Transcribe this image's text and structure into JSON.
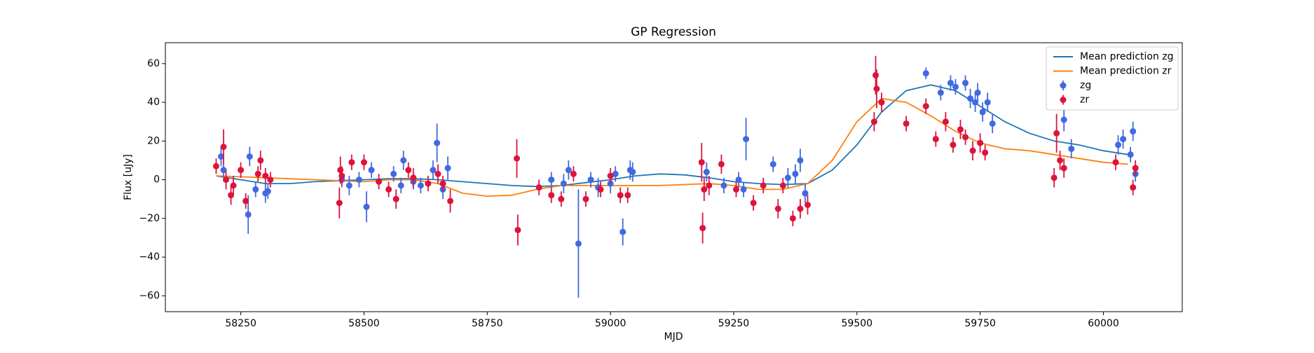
{
  "chart_data": {
    "type": "line",
    "title": "GP Regression",
    "x_label": "MJD",
    "y_label": "Flux [uJy]",
    "xlim": [
      58097,
      60160
    ],
    "ylim": [
      -68.2,
      70.8
    ],
    "xticks": [
      58250,
      58500,
      58750,
      59000,
      59250,
      59500,
      59750,
      60000
    ],
    "yticks": [
      {
        "value": -60,
        "label": "−60"
      },
      {
        "value": -40,
        "label": "−40"
      },
      {
        "value": -20,
        "label": "−20"
      },
      0,
      20,
      40,
      60
    ],
    "legend": "upper right",
    "series": [
      {
        "name": "Mean prediction zg",
        "kind": "line",
        "color": "#1f77b4",
        "x": [
          58200,
          58250,
          58300,
          58350,
          58400,
          58450,
          58500,
          58550,
          58600,
          58650,
          58700,
          58750,
          58800,
          58850,
          58900,
          58950,
          59000,
          59050,
          59100,
          59150,
          59200,
          59250,
          59300,
          59350,
          59400,
          59450,
          59500,
          59550,
          59600,
          59650,
          59700,
          59750,
          59800,
          59850,
          59900,
          59950,
          60000,
          60050
        ],
        "values": [
          2,
          0,
          -2,
          -2,
          -1,
          -0.5,
          0,
          0.5,
          0.5,
          0,
          -1,
          -2,
          -3,
          -3.5,
          -3,
          -1.5,
          0,
          2,
          3,
          2.5,
          1,
          -1,
          -2,
          -2.5,
          -2,
          5,
          18,
          35,
          46,
          49,
          46,
          38,
          30,
          24,
          20,
          18,
          15,
          13
        ]
      },
      {
        "name": "Mean prediction zr",
        "kind": "line",
        "color": "#ff7f0e",
        "x": [
          58200,
          58250,
          58300,
          58350,
          58400,
          58450,
          58500,
          58550,
          58600,
          58650,
          58700,
          58750,
          58800,
          58850,
          58900,
          58950,
          59000,
          59050,
          59100,
          59150,
          59200,
          59250,
          59300,
          59350,
          59400,
          59450,
          59500,
          59550,
          59600,
          59650,
          59700,
          59750,
          59800,
          59850,
          59900,
          59950,
          60000,
          60050
        ],
        "values": [
          2,
          1.5,
          1,
          0.5,
          0,
          -0.5,
          -1,
          0,
          0,
          -2,
          -7,
          -8.5,
          -8,
          -5,
          -3,
          -3,
          -3,
          -3,
          -3,
          -2.5,
          -2,
          -3,
          -5,
          -5,
          -2,
          10,
          30,
          42,
          40,
          33,
          25,
          19,
          16,
          15,
          13,
          11,
          9,
          8
        ]
      },
      {
        "name": "zg",
        "kind": "errorbar",
        "color": "#4169e1",
        "x": [
          58210,
          58215,
          58265,
          58268,
          58280,
          58300,
          58305,
          58455,
          58470,
          58490,
          58505,
          58515,
          58560,
          58575,
          58580,
          58600,
          58615,
          58640,
          58648,
          58660,
          58670,
          58880,
          58905,
          58915,
          58935,
          58960,
          58975,
          59000,
          59010,
          59025,
          59040,
          59045,
          59195,
          59230,
          59260,
          59270,
          59275,
          59330,
          59360,
          59375,
          59385,
          59395,
          59640,
          59670,
          59690,
          59700,
          59720,
          59730,
          59740,
          59745,
          59755,
          59765,
          59775,
          59920,
          59935,
          60030,
          60040,
          60055,
          60060,
          60065
        ],
        "values": [
          12,
          5,
          -18,
          12,
          -5,
          -7,
          -6,
          0,
          -3,
          0,
          -14,
          5,
          3,
          -3,
          10,
          -1,
          -3,
          5,
          19,
          -5,
          6,
          0,
          -2,
          5,
          -33,
          0,
          -4,
          -2,
          3,
          -27,
          5,
          4,
          4,
          -3,
          0,
          -5,
          21,
          8,
          1,
          3,
          10,
          -7,
          55,
          45,
          50,
          48,
          50,
          42,
          40,
          45,
          35,
          40,
          29,
          31,
          16,
          18,
          21,
          13,
          25,
          3
        ],
        "errors": [
          5,
          4,
          10,
          5,
          4,
          5,
          4,
          4,
          5,
          4,
          8,
          4,
          4,
          4,
          5,
          4,
          4,
          5,
          10,
          5,
          6,
          4,
          5,
          5,
          28,
          4,
          5,
          5,
          4,
          7,
          5,
          5,
          5,
          4,
          4,
          4,
          11,
          4,
          5,
          5,
          6,
          5,
          3,
          4,
          4,
          4,
          4,
          5,
          5,
          5,
          5,
          5,
          5,
          6,
          5,
          5,
          5,
          4,
          5,
          4
        ]
      },
      {
        "name": "zr",
        "kind": "errorbar",
        "color": "#dc143c",
        "x": [
          58200,
          58215,
          58220,
          58230,
          58235,
          58250,
          58260,
          58285,
          58290,
          58300,
          58310,
          58450,
          58452,
          58455,
          58475,
          58500,
          58530,
          58550,
          58565,
          58590,
          58600,
          58630,
          58650,
          58660,
          58675,
          58810,
          58812,
          58855,
          58880,
          58900,
          58925,
          58950,
          58980,
          59000,
          59020,
          59035,
          59185,
          59187,
          59190,
          59200,
          59225,
          59255,
          59290,
          59310,
          59340,
          59350,
          59370,
          59385,
          59400,
          59535,
          59538,
          59540,
          59550,
          59600,
          59640,
          59660,
          59680,
          59695,
          59710,
          59720,
          59735,
          59750,
          59760,
          59900,
          59905,
          59912,
          59920,
          60025,
          60060,
          60065
        ],
        "values": [
          7,
          17,
          0,
          -8,
          -3,
          5,
          -11,
          3,
          10,
          2,
          0,
          -12,
          5,
          2,
          9,
          9,
          -1,
          -5,
          -10,
          5,
          1,
          -2,
          3,
          -2,
          -11,
          11,
          -26,
          -4,
          -8,
          -10,
          3,
          -10,
          -5,
          2,
          -8,
          -8,
          9,
          -25,
          -5,
          -3,
          8,
          -5,
          -12,
          -3,
          -15,
          -3,
          -20,
          -15,
          -13,
          30,
          54,
          47,
          40,
          29,
          38,
          21,
          30,
          18,
          26,
          22,
          15,
          19,
          14,
          1,
          24,
          10,
          6,
          9,
          -4,
          6
        ],
        "errors": [
          4,
          9,
          5,
          5,
          5,
          4,
          4,
          4,
          5,
          4,
          4,
          8,
          7,
          5,
          4,
          4,
          4,
          4,
          5,
          4,
          5,
          4,
          5,
          4,
          6,
          10,
          8,
          4,
          4,
          4,
          4,
          4,
          4,
          4,
          4,
          4,
          10,
          8,
          6,
          5,
          5,
          4,
          4,
          4,
          5,
          4,
          4,
          5,
          5,
          5,
          10,
          10,
          5,
          4,
          4,
          4,
          5,
          4,
          5,
          4,
          5,
          5,
          4,
          5,
          10,
          5,
          5,
          4,
          4,
          4
        ]
      }
    ]
  }
}
